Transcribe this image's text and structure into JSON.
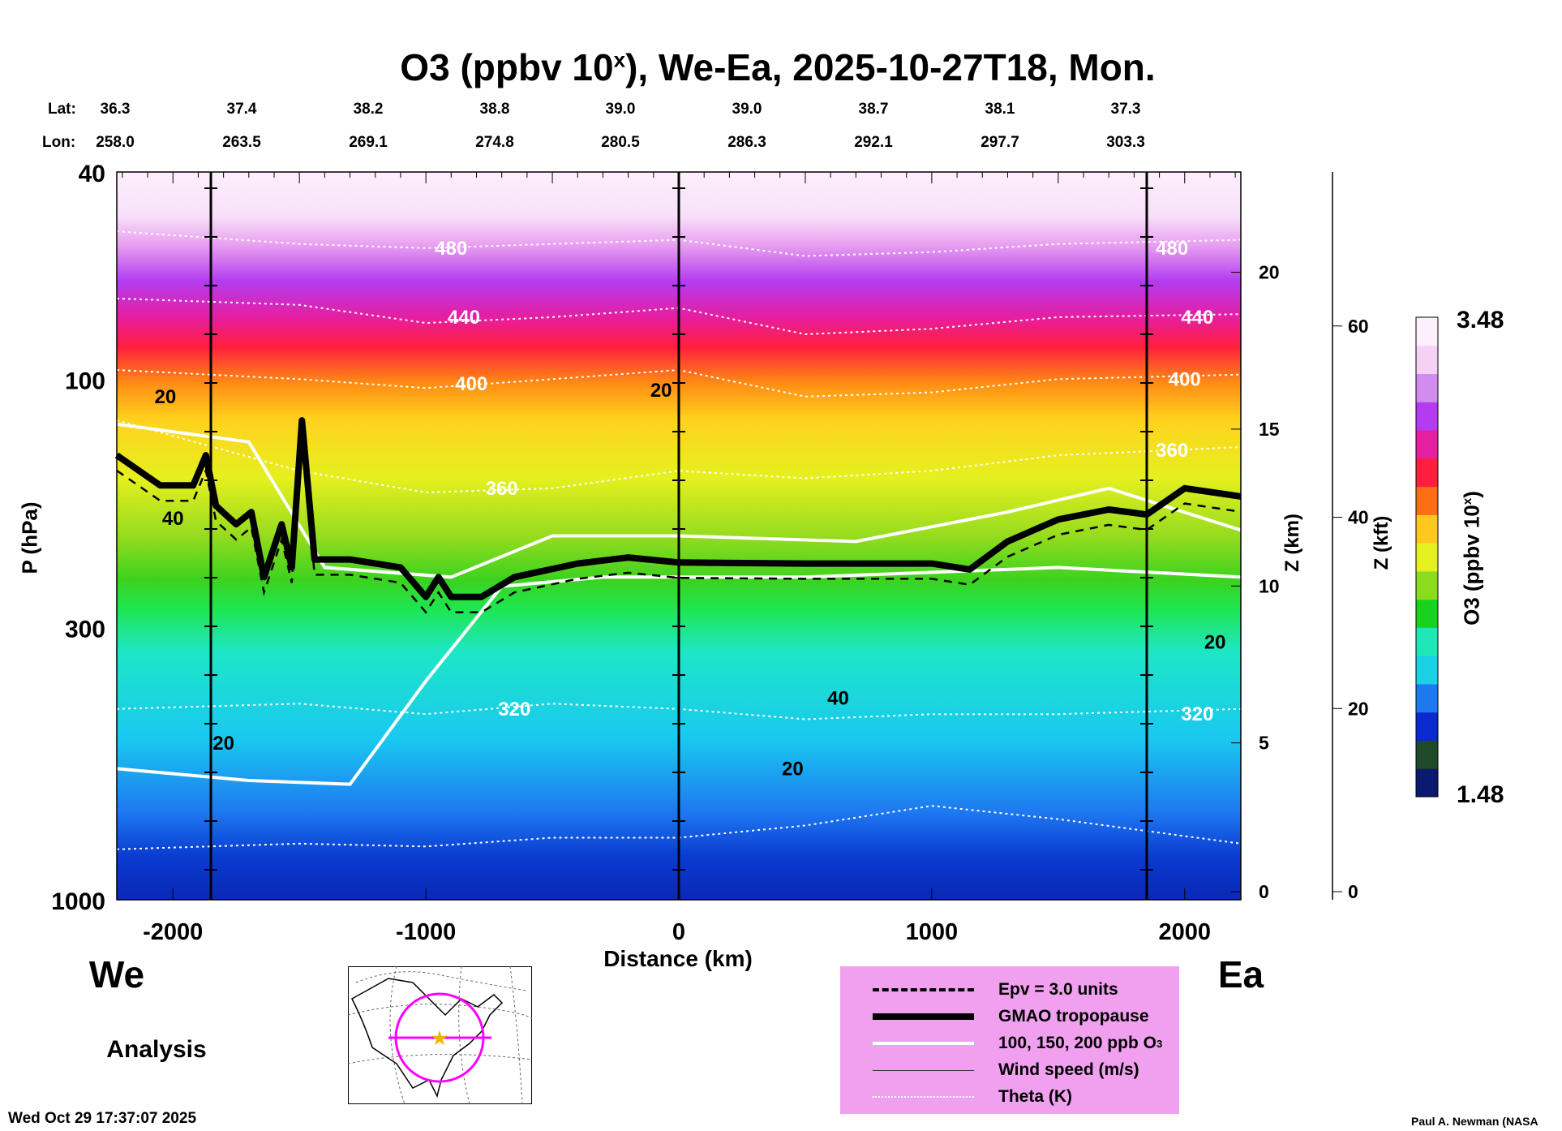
{
  "chart_data": {
    "type": "heatmap",
    "title": "O3 (ppbv 10",
    "title_sup": "x",
    "title_rest": "), We-Ea, 2025-10-27T18, Mon.",
    "xlabel": "Distance (km)",
    "ylabel": "P (hPa)",
    "xlim": [
      -2222,
      2222
    ],
    "ylim": [
      1000,
      40
    ],
    "yscale": "log",
    "xticks": [
      "-2000",
      "-1000",
      "0",
      "1000",
      "2000"
    ],
    "xtick_values": [
      -2000,
      -1000,
      0,
      1000,
      2000
    ],
    "yticks": [
      "40",
      "100",
      "300",
      "1000"
    ],
    "ytick_values": [
      40,
      100,
      300,
      1000
    ],
    "z_km_label": "Z (km)",
    "z_km_ticks": [
      "0",
      "5",
      "10",
      "15",
      "20"
    ],
    "z_km_values": [
      0,
      5,
      10,
      15,
      20
    ],
    "z_kft_label": "Z (kft)",
    "z_kft_ticks": [
      "0",
      "20",
      "40",
      "60"
    ],
    "z_kft_values": [
      0,
      20,
      40,
      60
    ],
    "lat_label": "Lat:",
    "lon_label": "Lon:",
    "lat": [
      "36.3",
      "37.4",
      "38.2",
      "38.8",
      "39.0",
      "39.0",
      "38.7",
      "38.1",
      "37.3"
    ],
    "lon": [
      "258.0",
      "263.5",
      "269.1",
      "274.8",
      "280.5",
      "286.3",
      "292.1",
      "297.7",
      "303.3"
    ],
    "section_lines_km": [
      -1850,
      0,
      1850
    ],
    "colorbar": {
      "label": "O3 (ppbv 10",
      "label_sup": "x",
      "label_end": ")",
      "max": "3.48",
      "min": "1.48",
      "colors": [
        "#0a1a6e",
        "#1e4a2a",
        "#0a2ad0",
        "#1e78f0",
        "#19d2e6",
        "#1ee6b4",
        "#19d21e",
        "#8cdc1e",
        "#e6f01e",
        "#ffc81e",
        "#ff6e14",
        "#ff1e3c",
        "#e61ea0",
        "#b43cf0",
        "#d28cf0",
        "#f5d2f5",
        "#fcf0fc"
      ]
    },
    "west_label": "We",
    "east_label": "Ea",
    "product_label": "Analysis",
    "tropopause": [
      [
        -2222,
        140
      ],
      [
        -2050,
        160
      ],
      [
        -1920,
        160
      ],
      [
        -1870,
        140
      ],
      [
        -1830,
        175
      ],
      [
        -1750,
        190
      ],
      [
        -1690,
        180
      ],
      [
        -1640,
        240
      ],
      [
        -1570,
        190
      ],
      [
        -1530,
        230
      ],
      [
        -1490,
        120
      ],
      [
        -1440,
        222
      ],
      [
        -1300,
        222
      ],
      [
        -1100,
        230
      ],
      [
        -1000,
        262
      ],
      [
        -950,
        240
      ],
      [
        -900,
        262
      ],
      [
        -780,
        262
      ],
      [
        -650,
        240
      ],
      [
        -400,
        226
      ],
      [
        -200,
        220
      ],
      [
        0,
        225
      ],
      [
        500,
        226
      ],
      [
        1000,
        226
      ],
      [
        1150,
        232
      ],
      [
        1300,
        205
      ],
      [
        1500,
        186
      ],
      [
        1700,
        178
      ],
      [
        1850,
        182
      ],
      [
        2000,
        162
      ],
      [
        2222,
        168
      ]
    ],
    "theta": [
      {
        "label": "480",
        "p": [
          [
            -2222,
            52
          ],
          [
            -1500,
            55
          ],
          [
            -1000,
            56
          ],
          [
            -500,
            55
          ],
          [
            0,
            54
          ],
          [
            500,
            58
          ],
          [
            1000,
            57
          ],
          [
            1500,
            55
          ],
          [
            2222,
            54
          ]
        ]
      },
      {
        "label": "440",
        "p": [
          [
            -2222,
            70
          ],
          [
            -1500,
            72
          ],
          [
            -1000,
            78
          ],
          [
            -500,
            76
          ],
          [
            0,
            73
          ],
          [
            500,
            82
          ],
          [
            1000,
            80
          ],
          [
            1500,
            76
          ],
          [
            2222,
            75
          ]
        ]
      },
      {
        "label": "400",
        "p": [
          [
            -2222,
            96
          ],
          [
            -1500,
            100
          ],
          [
            -1000,
            104
          ],
          [
            -500,
            100
          ],
          [
            0,
            96
          ],
          [
            500,
            108
          ],
          [
            1000,
            106
          ],
          [
            1500,
            100
          ],
          [
            2222,
            98
          ]
        ]
      },
      {
        "label": "360",
        "p": [
          [
            -2222,
            120
          ],
          [
            -1500,
            150
          ],
          [
            -1000,
            165
          ],
          [
            -500,
            162
          ],
          [
            0,
            150
          ],
          [
            500,
            155
          ],
          [
            1000,
            150
          ],
          [
            1500,
            140
          ],
          [
            2222,
            135
          ]
        ]
      },
      {
        "label": "320",
        "p": [
          [
            -2222,
            430
          ],
          [
            -1500,
            420
          ],
          [
            -1000,
            440
          ],
          [
            -500,
            420
          ],
          [
            0,
            430
          ],
          [
            500,
            450
          ],
          [
            1000,
            440
          ],
          [
            1500,
            440
          ],
          [
            2222,
            430
          ]
        ]
      },
      {
        "label": "",
        "p": [
          [
            -2222,
            800
          ],
          [
            -1500,
            780
          ],
          [
            -1000,
            790
          ],
          [
            -500,
            760
          ],
          [
            0,
            760
          ],
          [
            500,
            720
          ],
          [
            1000,
            660
          ],
          [
            1500,
            700
          ],
          [
            2222,
            780
          ]
        ]
      }
    ],
    "ozone_contours": [
      {
        "p": [
          [
            -2222,
            122
          ],
          [
            -1700,
            132
          ],
          [
            -1400,
            230
          ],
          [
            -900,
            240
          ],
          [
            -500,
            200
          ],
          [
            0,
            200
          ],
          [
            700,
            205
          ],
          [
            1300,
            180
          ],
          [
            1700,
            162
          ],
          [
            2222,
            195
          ]
        ]
      },
      {
        "p": [
          [
            -2222,
            560
          ],
          [
            -1700,
            590
          ],
          [
            -1300,
            600
          ],
          [
            -1000,
            380
          ],
          [
            -700,
            250
          ],
          [
            -300,
            240
          ],
          [
            0,
            240
          ],
          [
            500,
            240
          ],
          [
            1000,
            235
          ],
          [
            1500,
            230
          ],
          [
            2222,
            240
          ]
        ]
      }
    ],
    "contour_labels": [
      {
        "text": "480",
        "d": -900,
        "p": 56,
        "color": "#fff"
      },
      {
        "text": "440",
        "d": -850,
        "p": 76,
        "color": "#fff"
      },
      {
        "text": "400",
        "d": -820,
        "p": 102,
        "color": "#fff"
      },
      {
        "text": "360",
        "d": -700,
        "p": 162,
        "color": "#fff"
      },
      {
        "text": "320",
        "d": -650,
        "p": 430,
        "color": "#fff"
      },
      {
        "text": "480",
        "d": 1950,
        "p": 56,
        "color": "#fff"
      },
      {
        "text": "440",
        "d": 2050,
        "p": 76,
        "color": "#fff"
      },
      {
        "text": "400",
        "d": 2000,
        "p": 100,
        "color": "#fff"
      },
      {
        "text": "360",
        "d": 1950,
        "p": 137,
        "color": "#fff"
      },
      {
        "text": "320",
        "d": 2050,
        "p": 440,
        "color": "#fff"
      },
      {
        "text": "20",
        "d": 2120,
        "p": 320,
        "color": "#000"
      },
      {
        "text": "20",
        "d": -2030,
        "p": 108,
        "color": "#000"
      },
      {
        "text": "40",
        "d": -2000,
        "p": 185,
        "color": "#000"
      },
      {
        "text": "20",
        "d": -1800,
        "p": 500,
        "color": "#000"
      },
      {
        "text": "20",
        "d": -70,
        "p": 105,
        "color": "#000"
      },
      {
        "text": "40",
        "d": 630,
        "p": 410,
        "color": "#000"
      },
      {
        "text": "20",
        "d": 450,
        "p": 560,
        "color": "#000"
      }
    ],
    "legend": [
      {
        "style": "dashed",
        "label": "Epv = 3.0 units"
      },
      {
        "style": "thick",
        "label": "GMAO tropopause"
      },
      {
        "style": "white",
        "label": "100, 150, 200 ppb O",
        "sub": "3"
      },
      {
        "style": "thin",
        "label": "Wind speed (m/s)"
      },
      {
        "style": "dotted",
        "label": "Theta (K)"
      }
    ]
  },
  "footer": {
    "timestamp": "Wed Oct 29 17:37:07 2025",
    "author": "Paul A. Newman (NASA"
  }
}
